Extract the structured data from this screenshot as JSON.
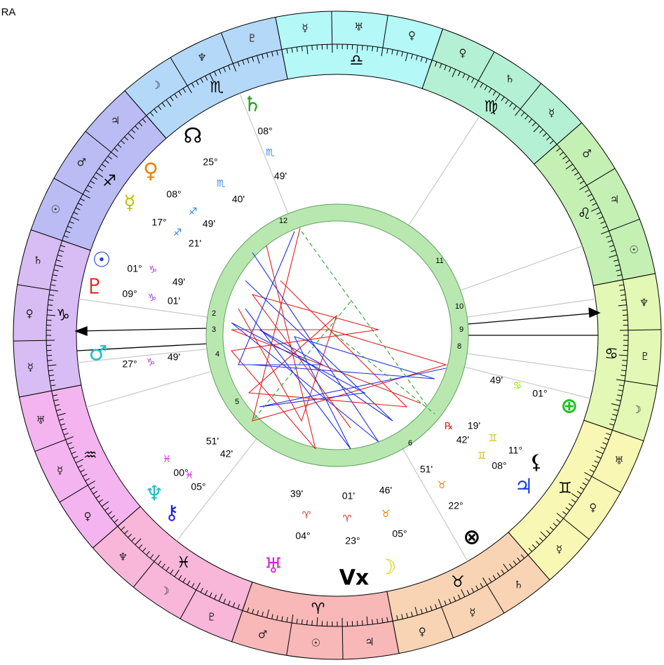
{
  "header": {
    "title": "RA"
  },
  "zodiac": {
    "signs": [
      {
        "glyph": "♑",
        "decans": [
          "♄",
          "♀",
          "☿"
        ]
      },
      {
        "glyph": "♒",
        "decans": [
          "♅",
          "☿",
          "♀"
        ]
      },
      {
        "glyph": "♓",
        "decans": [
          "♆",
          "☽",
          "♇"
        ]
      },
      {
        "glyph": "♈",
        "decans": [
          "♂",
          "☉",
          "♃"
        ]
      },
      {
        "glyph": "♉",
        "decans": [
          "♀",
          "☿",
          "♄"
        ]
      },
      {
        "glyph": "♊",
        "decans": [
          "☿",
          "♀",
          "♅"
        ]
      },
      {
        "glyph": "♋",
        "decans": [
          "☽",
          "♇",
          "♆"
        ]
      },
      {
        "glyph": "♌",
        "decans": [
          "☉",
          "♃",
          "♂"
        ]
      },
      {
        "glyph": "♍",
        "decans": [
          "☿",
          "♄",
          "♀"
        ]
      },
      {
        "glyph": "♎",
        "decans": [
          "♀",
          "♅",
          "☿"
        ]
      },
      {
        "glyph": "♏",
        "decans": [
          "♇",
          "♆",
          "☽"
        ]
      },
      {
        "glyph": "♐",
        "decans": [
          "♃",
          "♂",
          "☉"
        ]
      }
    ]
  },
  "houses": [
    "12",
    "11",
    "10",
    "9",
    "8",
    "6",
    "5",
    "4",
    "3",
    "2"
  ],
  "planets": [
    {
      "glyph": "♄",
      "degree": "08°",
      "sign": "♏",
      "minute": "49'"
    },
    {
      "glyph": "☊",
      "degree": "25°",
      "sign": "♏",
      "minute": "40'"
    },
    {
      "glyph": "♀",
      "degree": "08°",
      "sign": "♐",
      "minute": "49'"
    },
    {
      "glyph": "☿",
      "degree": "17°",
      "sign": "♐",
      "minute": "21'"
    },
    {
      "glyph": "☉",
      "degree": "01°",
      "sign": "♑",
      "minute": "49'"
    },
    {
      "glyph": "♇",
      "degree": "09°",
      "sign": "♑",
      "minute": "01'"
    },
    {
      "glyph": "♂",
      "degree": "27°",
      "sign": "♑",
      "minute": "49'"
    },
    {
      "glyph": "♆",
      "degree": "00°",
      "sign": "♓",
      "minute": "51'"
    },
    {
      "glyph": "⚷",
      "degree": "05°",
      "sign": "♓",
      "minute": "42'"
    },
    {
      "glyph": "♅",
      "degree": "04°",
      "sign": "♈",
      "minute": "39'"
    },
    {
      "glyph": "Vx",
      "degree": "23°",
      "sign": "♈",
      "minute": "01'"
    },
    {
      "glyph": "☽",
      "degree": "05°",
      "sign": "♉",
      "minute": "46'"
    },
    {
      "glyph": "⊗",
      "degree": "22°",
      "sign": "♉",
      "minute": "51'"
    },
    {
      "glyph": "♃",
      "degree": "08°",
      "sign": "♊",
      "minute": "42'",
      "retro": "℞"
    },
    {
      "glyph": "⚸",
      "degree": "11°",
      "sign": "♊",
      "minute": "19'"
    },
    {
      "glyph": "⊕",
      "degree": "01°",
      "sign": "♋",
      "minute": "49'"
    }
  ]
}
